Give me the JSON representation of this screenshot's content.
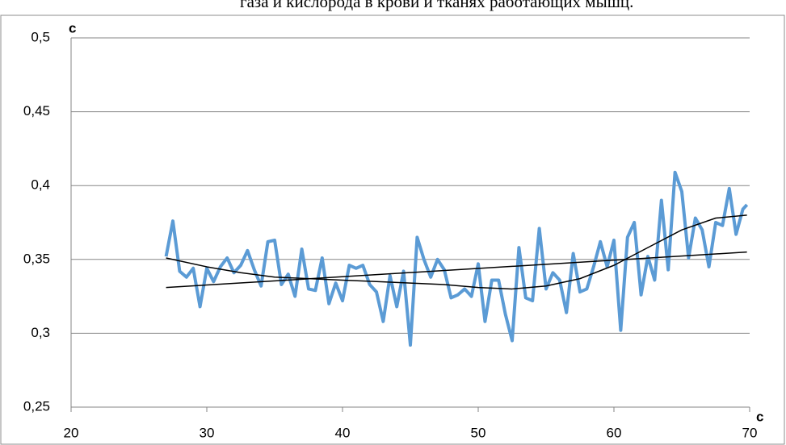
{
  "caption": "газа и кислорода в крови и тканях работающих мышц.",
  "chart_data": {
    "type": "line",
    "y_label": "c",
    "x_label": "c",
    "xlim": [
      20,
      70
    ],
    "xticks": [
      20,
      30,
      40,
      50,
      60,
      70
    ],
    "ylim": [
      0.25,
      0.5
    ],
    "yticks": [
      {
        "value": 0.25,
        "label": "0,25"
      },
      {
        "value": 0.3,
        "label": "0,3"
      },
      {
        "value": 0.35,
        "label": "0,35"
      },
      {
        "value": 0.4,
        "label": "0,4"
      },
      {
        "value": 0.45,
        "label": "0,45"
      },
      {
        "value": 0.5,
        "label": "0,5"
      }
    ],
    "grid": true,
    "series": [
      {
        "color": "#5b9bd5",
        "width": 4,
        "x": [
          27,
          27.5,
          28,
          28.5,
          29,
          29.5,
          30,
          30.5,
          31,
          31.5,
          32,
          32.5,
          33,
          33.5,
          34,
          34.5,
          35,
          35.5,
          36,
          36.5,
          37,
          37.5,
          38,
          38.5,
          39,
          39.5,
          40,
          40.5,
          41,
          41.5,
          42,
          42.5,
          43,
          43.5,
          44,
          44.5,
          45,
          45.5,
          46,
          46.5,
          47,
          47.5,
          48,
          48.5,
          49,
          49.5,
          50,
          50.5,
          51,
          51.5,
          52,
          52.5,
          53,
          53.5,
          54,
          54.5,
          55,
          55.5,
          56,
          56.5,
          57,
          57.5,
          58,
          58.5,
          59,
          59.5,
          60,
          60.5,
          61,
          61.5,
          62,
          62.5,
          63,
          63.5,
          64,
          64.5,
          65,
          65.5,
          66,
          66.5,
          67,
          67.5,
          68,
          68.5,
          69,
          69.5,
          69.8
        ],
        "values": [
          0.352,
          0.376,
          0.342,
          0.338,
          0.344,
          0.318,
          0.344,
          0.335,
          0.345,
          0.351,
          0.341,
          0.346,
          0.356,
          0.343,
          0.332,
          0.362,
          0.363,
          0.333,
          0.34,
          0.325,
          0.357,
          0.33,
          0.329,
          0.351,
          0.32,
          0.334,
          0.322,
          0.346,
          0.344,
          0.346,
          0.333,
          0.328,
          0.308,
          0.339,
          0.318,
          0.342,
          0.292,
          0.365,
          0.35,
          0.338,
          0.35,
          0.343,
          0.324,
          0.326,
          0.33,
          0.325,
          0.347,
          0.308,
          0.336,
          0.336,
          0.313,
          0.295,
          0.358,
          0.324,
          0.322,
          0.371,
          0.33,
          0.341,
          0.336,
          0.314,
          0.354,
          0.328,
          0.33,
          0.345,
          0.362,
          0.345,
          0.363,
          0.302,
          0.365,
          0.375,
          0.326,
          0.352,
          0.336,
          0.39,
          0.343,
          0.409,
          0.396,
          0.351,
          0.378,
          0.37,
          0.345,
          0.375,
          0.373,
          0.398,
          0.367,
          0.384,
          0.387
        ]
      },
      {
        "color": "#000000",
        "width": 1.5,
        "x": [
          27,
          30,
          32.5,
          35,
          37.5,
          40,
          42.5,
          45,
          47.5,
          50,
          52.5,
          55,
          57.5,
          60,
          62.5,
          65,
          67.5,
          69.8
        ],
        "values": [
          0.351,
          0.345,
          0.341,
          0.338,
          0.337,
          0.336,
          0.335,
          0.334,
          0.333,
          0.331,
          0.33,
          0.332,
          0.337,
          0.346,
          0.358,
          0.37,
          0.378,
          0.38
        ]
      },
      {
        "color": "#000000",
        "width": 1.5,
        "x": [
          27,
          69.8
        ],
        "values": [
          0.331,
          0.355
        ]
      }
    ]
  }
}
